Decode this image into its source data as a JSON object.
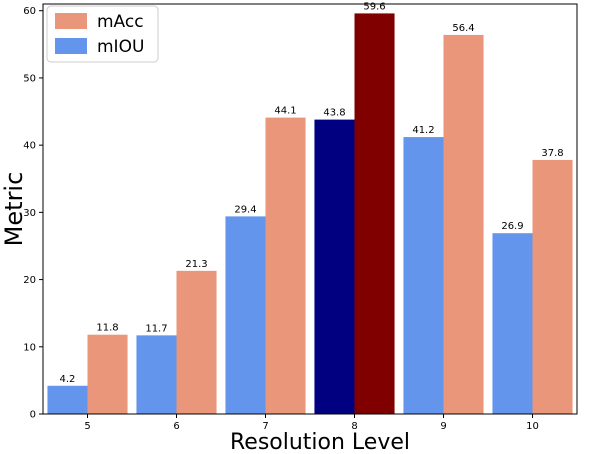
{
  "chart_data": {
    "type": "bar",
    "xlabel": "Resolution Level",
    "ylabel": "Metric",
    "categories": [
      "5",
      "6",
      "7",
      "8",
      "9",
      "10"
    ],
    "ylim": [
      0,
      61
    ],
    "yticks": [
      0,
      10,
      20,
      30,
      40,
      50,
      60
    ],
    "grid": false,
    "legend_position": "top-left",
    "series": [
      {
        "name": "mIOU",
        "values": [
          4.2,
          11.7,
          29.4,
          43.8,
          41.2,
          26.9
        ],
        "labels": [
          "4.2",
          "11.7",
          "29.4",
          "43.8",
          "41.2",
          "26.9"
        ],
        "color": "#6495ED",
        "highlight_color": "#000080"
      },
      {
        "name": "mAcc",
        "values": [
          11.8,
          21.3,
          44.1,
          59.6,
          56.4,
          37.8
        ],
        "labels": [
          "11.8",
          "21.3",
          "44.1",
          "59.6",
          "56.4",
          "37.8"
        ],
        "color": "#E9967A",
        "highlight_color": "#800000"
      }
    ],
    "highlight_category": "8"
  }
}
